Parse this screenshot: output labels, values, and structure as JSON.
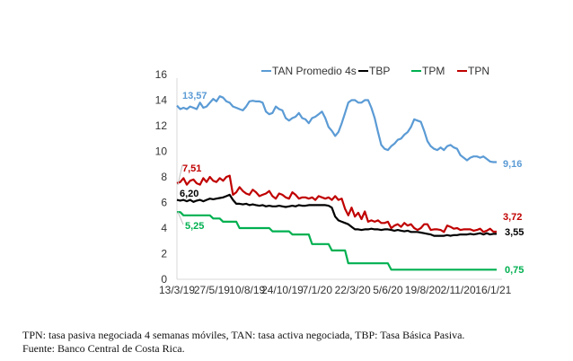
{
  "chart_data": {
    "type": "line",
    "title": "",
    "xlabel": "",
    "ylabel": "",
    "ylim": [
      0,
      16
    ],
    "yticks": [
      "0",
      "2",
      "4",
      "6",
      "8",
      "10",
      "12",
      "14",
      "16"
    ],
    "ytick_values": [
      0,
      2,
      4,
      6,
      8,
      10,
      12,
      14,
      16
    ],
    "xtick_labels": [
      "13/3/19",
      "27/5/19",
      "10/8/19",
      "24/10/19",
      "7/1/20",
      "22/3/20",
      "5/6/20",
      "19/8/20",
      "2/11/20",
      "16/1/21"
    ],
    "xtick_index": [
      0,
      10.6,
      21.3,
      32,
      42.6,
      53.3,
      64,
      74.6,
      85.3,
      96
    ],
    "n_points": 98,
    "grid": false,
    "legend_position": "top",
    "series": [
      {
        "name": "TAN Promedio 4s",
        "color": "#5b9bd5",
        "first_label": "13,57",
        "last_label": "9,16",
        "values": [
          13.57,
          13.3,
          13.4,
          13.3,
          13.5,
          13.4,
          13.3,
          13.8,
          13.4,
          13.5,
          13.8,
          14.1,
          13.9,
          14.3,
          14.2,
          13.9,
          13.8,
          13.5,
          13.4,
          13.3,
          13.2,
          13.5,
          13.9,
          13.95,
          13.9,
          13.9,
          13.8,
          13.1,
          12.9,
          13.0,
          13.5,
          13.3,
          13.2,
          12.6,
          12.4,
          12.6,
          12.7,
          13.0,
          12.6,
          12.5,
          12.2,
          12.6,
          12.7,
          12.9,
          13.1,
          12.6,
          11.9,
          11.6,
          11.2,
          11.5,
          12.2,
          13.0,
          13.8,
          14.0,
          14.0,
          13.8,
          13.8,
          14.0,
          14.0,
          13.4,
          12.6,
          11.5,
          10.5,
          10.2,
          10.1,
          10.4,
          10.6,
          10.9,
          11.0,
          11.3,
          11.5,
          11.9,
          12.5,
          12.4,
          12.3,
          11.6,
          10.8,
          10.4,
          10.2,
          10.1,
          10.3,
          10.1,
          10.4,
          10.5,
          10.3,
          10.2,
          9.7,
          9.5,
          9.3,
          9.5,
          9.6,
          9.6,
          9.5,
          9.6,
          9.4,
          9.2,
          9.16,
          9.16
        ]
      },
      {
        "name": "TBP",
        "color": "#000000",
        "first_label": "6,20",
        "last_label": "3,55",
        "values": [
          6.2,
          6.15,
          6.2,
          6.1,
          6.2,
          6.05,
          6.15,
          6.2,
          6.1,
          6.2,
          6.3,
          6.25,
          6.3,
          6.35,
          6.4,
          6.5,
          6.6,
          6.2,
          5.9,
          5.9,
          5.85,
          5.9,
          5.8,
          5.85,
          5.8,
          5.75,
          5.8,
          5.7,
          5.75,
          5.7,
          5.7,
          5.75,
          5.7,
          5.65,
          5.7,
          5.75,
          5.7,
          5.8,
          5.75,
          5.75,
          5.8,
          5.8,
          5.8,
          5.8,
          5.8,
          5.8,
          5.75,
          5.6,
          4.9,
          4.6,
          4.5,
          4.4,
          4.3,
          4.1,
          3.9,
          3.9,
          3.85,
          3.9,
          3.9,
          3.95,
          3.9,
          3.9,
          3.85,
          3.9,
          3.9,
          3.85,
          3.8,
          3.85,
          3.8,
          3.75,
          3.8,
          3.7,
          3.7,
          3.7,
          3.65,
          3.6,
          3.55,
          3.5,
          3.4,
          3.4,
          3.4,
          3.4,
          3.45,
          3.4,
          3.45,
          3.45,
          3.5,
          3.5,
          3.5,
          3.55,
          3.5,
          3.55,
          3.6,
          3.5,
          3.6,
          3.5,
          3.55,
          3.55
        ]
      },
      {
        "name": "TPM",
        "color": "#00b050",
        "first_label": "5,25",
        "last_label": "0,75",
        "values": [
          5.25,
          5.25,
          5.0,
          5.0,
          5.0,
          5.0,
          5.0,
          5.0,
          5.0,
          5.0,
          5.0,
          4.75,
          4.75,
          4.75,
          4.5,
          4.5,
          4.5,
          4.5,
          4.5,
          4.0,
          4.0,
          4.0,
          4.0,
          4.0,
          4.0,
          4.0,
          4.0,
          4.0,
          4.0,
          3.75,
          3.75,
          3.75,
          3.75,
          3.75,
          3.75,
          3.5,
          3.5,
          3.5,
          3.5,
          3.5,
          3.5,
          2.75,
          2.75,
          2.75,
          2.75,
          2.75,
          2.75,
          2.25,
          2.25,
          2.25,
          2.25,
          2.25,
          1.25,
          1.25,
          1.25,
          1.25,
          1.25,
          1.25,
          1.25,
          1.25,
          1.25,
          1.25,
          1.25,
          1.25,
          1.25,
          0.75,
          0.75,
          0.75,
          0.75,
          0.75,
          0.75,
          0.75,
          0.75,
          0.75,
          0.75,
          0.75,
          0.75,
          0.75,
          0.75,
          0.75,
          0.75,
          0.75,
          0.75,
          0.75,
          0.75,
          0.75,
          0.75,
          0.75,
          0.75,
          0.75,
          0.75,
          0.75,
          0.75,
          0.75,
          0.75,
          0.75,
          0.75,
          0.75
        ]
      },
      {
        "name": "TPN",
        "color": "#c00000",
        "first_label": "7,51",
        "last_label": "3,72",
        "values": [
          7.51,
          7.6,
          7.9,
          7.4,
          7.7,
          7.8,
          7.5,
          7.4,
          7.9,
          7.6,
          8.0,
          7.7,
          7.6,
          7.9,
          7.7,
          8.0,
          8.1,
          6.6,
          6.8,
          7.2,
          6.9,
          6.7,
          6.6,
          7.0,
          6.8,
          6.5,
          6.6,
          6.7,
          6.9,
          6.5,
          6.3,
          6.7,
          6.6,
          6.4,
          6.3,
          6.8,
          6.6,
          6.3,
          6.4,
          6.4,
          6.3,
          6.4,
          6.2,
          6.5,
          6.4,
          6.3,
          6.4,
          6.2,
          6.5,
          6.2,
          6.3,
          5.5,
          5.0,
          5.6,
          4.9,
          5.2,
          4.7,
          5.3,
          4.5,
          4.6,
          4.5,
          4.6,
          4.4,
          4.4,
          4.5,
          4.0,
          4.2,
          4.3,
          4.1,
          4.4,
          4.2,
          4.3,
          4.0,
          3.85,
          4.0,
          4.3,
          4.3,
          3.85,
          3.9,
          3.9,
          3.85,
          3.7,
          4.2,
          4.1,
          3.95,
          4.0,
          3.85,
          3.9,
          3.9,
          3.9,
          3.8,
          3.85,
          3.95,
          3.7,
          3.8,
          3.95,
          3.72,
          3.72
        ]
      }
    ]
  },
  "caption": {
    "line1": "TPN: tasa pasiva negociada 4 semanas móviles, TAN: tasa activa negociada, TBP: Tasa Básica Pasiva.",
    "line2": "Fuente: Banco Central de Costa Rica."
  }
}
